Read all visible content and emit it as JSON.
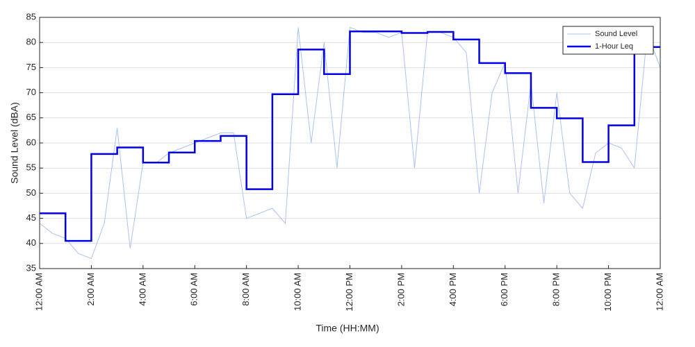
{
  "chart_data": {
    "type": "line",
    "xlabel": "Time (HH:MM)",
    "ylabel": "Sound Level (dBA)",
    "xlim": [
      0,
      24
    ],
    "xticks": [
      {
        "value": 0,
        "label": "12:00 AM"
      },
      {
        "value": 2,
        "label": "2:00 AM"
      },
      {
        "value": 4,
        "label": "4:00 AM"
      },
      {
        "value": 6,
        "label": "6:00 AM"
      },
      {
        "value": 8,
        "label": "8:00 AM"
      },
      {
        "value": 10,
        "label": "10:00 AM"
      },
      {
        "value": 12,
        "label": "12:00 PM"
      },
      {
        "value": 14,
        "label": "2:00 PM"
      },
      {
        "value": 16,
        "label": "4:00 PM"
      },
      {
        "value": 18,
        "label": "6:00 PM"
      },
      {
        "value": 20,
        "label": "8:00 PM"
      },
      {
        "value": 22,
        "label": "10:00 PM"
      },
      {
        "value": 24,
        "label": "12:00 AM"
      }
    ],
    "ylim": [
      35,
      85
    ],
    "yticks": [
      35,
      40,
      45,
      50,
      55,
      60,
      65,
      70,
      75,
      80,
      85
    ],
    "grid": true,
    "legend": "upper right",
    "series": [
      {
        "name": "Sound Level",
        "color": "#a9c3f2",
        "width": 1,
        "x": [
          0,
          0.5,
          1,
          1.5,
          2,
          2.5,
          3,
          3.5,
          4,
          4.5,
          5,
          5.5,
          6,
          6.5,
          7,
          7.5,
          8,
          8.5,
          9,
          9.5,
          10,
          10.5,
          11,
          11.5,
          12,
          12.5,
          13,
          13.5,
          14,
          14.5,
          15,
          15.5,
          16,
          16.5,
          17,
          17.5,
          18,
          18.5,
          19,
          19.5,
          20,
          20.5,
          21,
          21.5,
          22,
          22.5,
          23,
          23.5,
          24
        ],
        "values": [
          44,
          42,
          41,
          38,
          37,
          44,
          63,
          39,
          56,
          56,
          58,
          59,
          60,
          61,
          62,
          62,
          45,
          46,
          47,
          44,
          83,
          60,
          80,
          55,
          83,
          82,
          82,
          81,
          82,
          55,
          82,
          82,
          81,
          78,
          50,
          70,
          76,
          50,
          72,
          48,
          70,
          50,
          47,
          58,
          60,
          59,
          55,
          82,
          75
        ]
      },
      {
        "name": "1-Hour Leq",
        "color": "#0000e6",
        "width": 2.5,
        "step": "post",
        "x": [
          0,
          1,
          2,
          3,
          4,
          5,
          6,
          7,
          8,
          9,
          10,
          11,
          12,
          13,
          14,
          15,
          16,
          17,
          18,
          19,
          20,
          21,
          22,
          23
        ],
        "values": [
          46,
          40.5,
          57.8,
          59.1,
          56.1,
          58.1,
          60.4,
          61.4,
          50.8,
          69.7,
          78.6,
          73.7,
          82.2,
          82.2,
          81.9,
          82.1,
          80.6,
          75.9,
          73.9,
          67,
          64.9,
          56.2,
          63.5,
          79.1
        ]
      }
    ]
  }
}
